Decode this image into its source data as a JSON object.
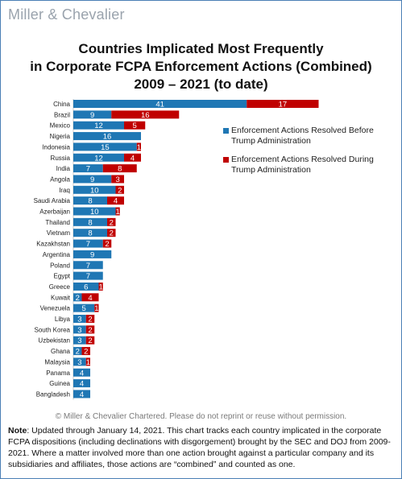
{
  "logo": {
    "text": "Miller & Chevalier"
  },
  "title": {
    "line1": "Countries Implicated Most Frequently",
    "line2": "in Corporate FCPA Enforcement Actions (Combined)",
    "line3": "2009 – 2021 (to date)"
  },
  "copyright": "© Miller & Chevalier Chartered. Please do not reprint or reuse without permission.",
  "note": {
    "label": "Note",
    "text": ": Updated through January 14, 2021. This chart tracks each country implicated in the corporate FCPA dispositions (including declinations with disgorgement) brought by the SEC and DOJ from 2009-2021. Where a matter involved more than one action brought against a particular company and its subsidiaries and affiliates, those actions are “combined” and counted as one."
  },
  "colors": {
    "before": "#1f77b4",
    "during": "#c00000"
  },
  "chart_data": {
    "type": "bar",
    "orientation": "horizontal",
    "stacked": true,
    "categories": [
      "China",
      "Brazil",
      "Mexico",
      "Nigeria",
      "Indonesia",
      "Russia",
      "India",
      "Angola",
      "Iraq",
      "Saudi Arabia",
      "Azerbaijan",
      "Thailand",
      "Vietnam",
      "Kazakhstan",
      "Argentina",
      "Poland",
      "Egypt",
      "Greece",
      "Kuwait",
      "Venezuela",
      "Libya",
      "South Korea",
      "Uzbekistan",
      "Ghana",
      "Malaysia",
      "Panama",
      "Guinea",
      "Bangladesh"
    ],
    "series": [
      {
        "name": "Enforcement Actions Resolved Before Trump Administration",
        "values": [
          41,
          9,
          12,
          16,
          15,
          12,
          7,
          9,
          10,
          8,
          10,
          8,
          8,
          7,
          9,
          7,
          7,
          6,
          2,
          5,
          3,
          3,
          3,
          2,
          3,
          4,
          4,
          4
        ]
      },
      {
        "name": "Enforcement Actions Resolved During Trump Administration",
        "values": [
          17,
          16,
          5,
          0,
          1,
          4,
          8,
          3,
          2,
          4,
          1,
          2,
          2,
          2,
          0,
          0,
          0,
          1,
          4,
          1,
          2,
          2,
          2,
          2,
          1,
          0,
          0,
          0
        ]
      }
    ],
    "legend_position": "right",
    "grid": false
  }
}
